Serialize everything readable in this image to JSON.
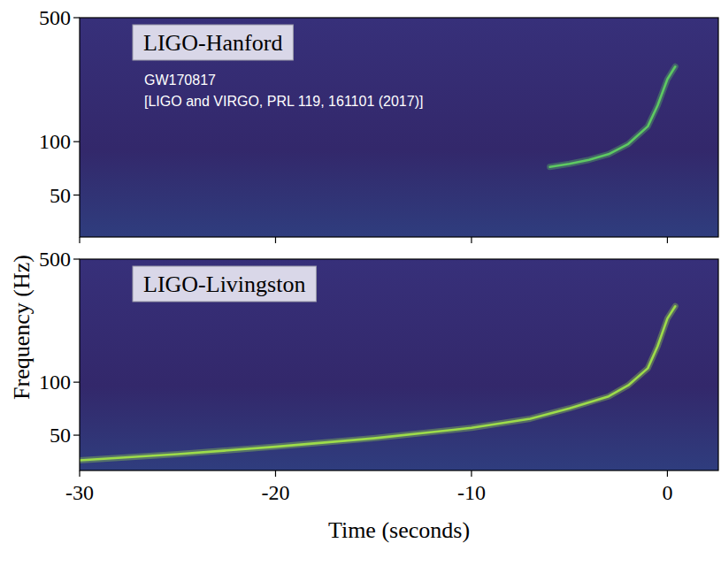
{
  "chart_data": [
    {
      "type": "line",
      "title": "LIGO-Hanford",
      "annotations": [
        "GW170817",
        "[LIGO and VIRGO, PRL 119, 161101 (2017)]"
      ],
      "log": "y",
      "grid": false,
      "tick_labels": "y",
      "xlim": [
        -30,
        2.6
      ],
      "xticks": [
        -30,
        -20,
        -10,
        0
      ],
      "ylim": [
        29,
        500
      ],
      "yticks": [
        50,
        100,
        500
      ],
      "x": [
        -6,
        -5,
        -4,
        -3,
        -2,
        -1,
        -0.5,
        0,
        0.4
      ],
      "series": [
        {
          "color": "#5ec962",
          "values": [
            72,
            75,
            79,
            85,
            97,
            122,
            160,
            225,
            265
          ]
        }
      ]
    },
    {
      "type": "line",
      "title": "LIGO-Livingston",
      "x_label": "Time (seconds)",
      "y_label": "Frequency (Hz)",
      "log": "y",
      "grid": false,
      "xlim": [
        -30,
        2.6
      ],
      "xticks": [
        -30,
        -20,
        -10,
        0
      ],
      "ylim": [
        31.5,
        500
      ],
      "yticks": [
        50,
        100,
        500
      ],
      "x": [
        -30,
        -25,
        -20,
        -15,
        -10,
        -7,
        -5,
        -3,
        -2,
        -1,
        -0.5,
        0,
        0.4
      ],
      "series": [
        {
          "color": "#9ddc4a",
          "values": [
            36,
            39,
            43,
            48,
            55,
            62,
            71,
            83,
            96,
            120,
            160,
            230,
            270
          ]
        }
      ]
    }
  ]
}
